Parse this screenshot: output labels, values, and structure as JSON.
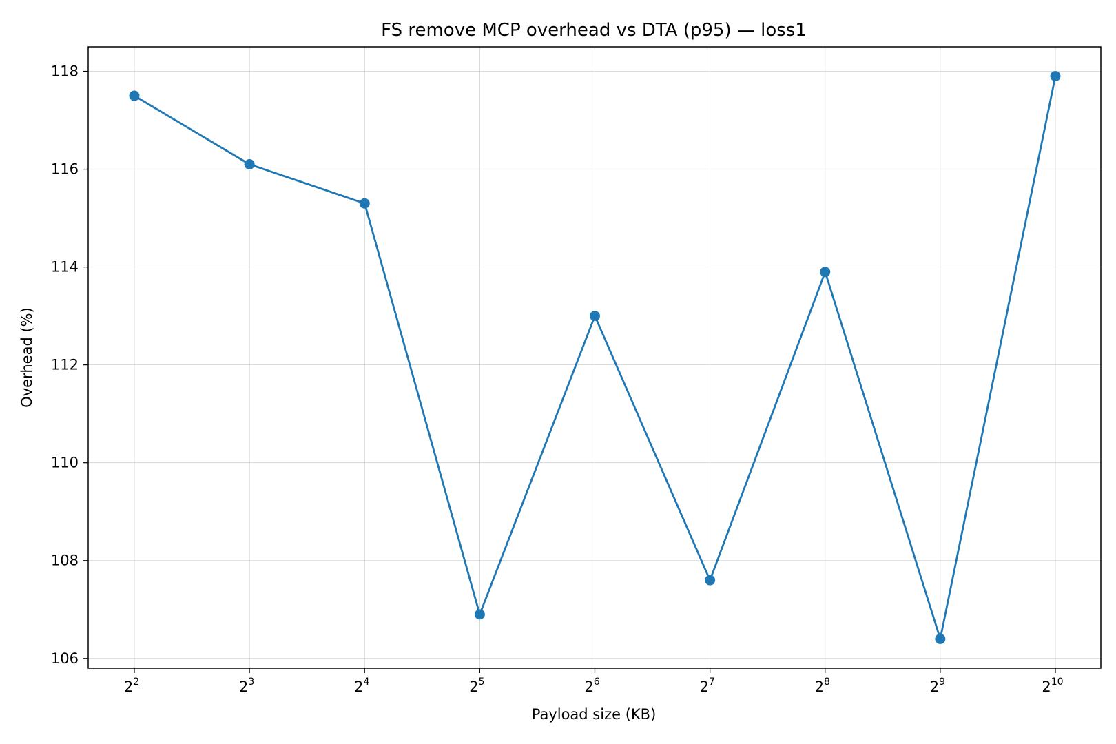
{
  "chart_data": {
    "type": "line",
    "title": "FS remove MCP overhead vs DTA (p95) — loss1",
    "xlabel": "Payload size (KB)",
    "ylabel": "Overhead (%)",
    "x_scale": "log2",
    "x": [
      4,
      8,
      16,
      32,
      64,
      128,
      256,
      512,
      1024
    ],
    "x_tick_labels": [
      {
        "base": "2",
        "exp": "2"
      },
      {
        "base": "2",
        "exp": "3"
      },
      {
        "base": "2",
        "exp": "4"
      },
      {
        "base": "2",
        "exp": "5"
      },
      {
        "base": "2",
        "exp": "6"
      },
      {
        "base": "2",
        "exp": "7"
      },
      {
        "base": "2",
        "exp": "8"
      },
      {
        "base": "2",
        "exp": "9"
      },
      {
        "base": "2",
        "exp": "10"
      }
    ],
    "series": [
      {
        "values": [
          117.5,
          116.1,
          115.3,
          106.9,
          113.0,
          107.6,
          113.9,
          106.4,
          117.9
        ],
        "color": "#1f77b4",
        "marker": "circle"
      }
    ],
    "ylim": [
      105.8,
      118.5
    ],
    "y_ticks": [
      106,
      108,
      110,
      112,
      114,
      116,
      118
    ],
    "grid": true
  }
}
